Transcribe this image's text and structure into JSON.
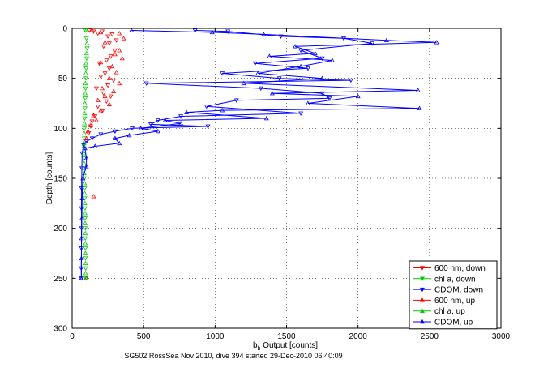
{
  "chart_data": {
    "type": "scatter",
    "title": "",
    "caption": "SG502 RossSea Nov 2010, dive 394 started 29-Dec-2010 06:40:09",
    "xlabel": "b",
    "xlabel_sub": "b",
    "xlabel_suffix": " Output [counts]",
    "ylabel": "Depth [counts]",
    "xlim": [
      0,
      3000
    ],
    "ylim": [
      0,
      300
    ],
    "y_reversed": true,
    "grid": "dotted",
    "legend_position": "lower-right",
    "xticks": [
      "0",
      "500",
      "1000",
      "1500",
      "2000",
      "2500",
      "3000"
    ],
    "yticks": [
      "0",
      "50",
      "100",
      "150",
      "200",
      "250",
      "300"
    ],
    "xtick_values": [
      0,
      500,
      1000,
      1500,
      2000,
      2500,
      3000
    ],
    "ytick_values": [
      0,
      50,
      100,
      150,
      200,
      250,
      300
    ],
    "colors": {
      "red": "#ff0000",
      "green": "#00cc00",
      "blue": "#0000ff"
    },
    "series": [
      {
        "name": "600 nm, down",
        "color": "#ff0000",
        "marker": "triangle-down",
        "line": false,
        "points": [
          [
            120,
            2
          ],
          [
            150,
            3
          ],
          [
            180,
            5
          ],
          [
            210,
            3
          ],
          [
            250,
            8
          ],
          [
            280,
            6
          ],
          [
            310,
            12
          ],
          [
            260,
            15
          ],
          [
            220,
            18
          ],
          [
            300,
            22
          ],
          [
            270,
            28
          ],
          [
            240,
            32
          ],
          [
            190,
            35
          ],
          [
            260,
            40
          ],
          [
            230,
            45
          ],
          [
            200,
            48
          ],
          [
            290,
            52
          ],
          [
            250,
            57
          ],
          [
            170,
            60
          ],
          [
            220,
            65
          ],
          [
            270,
            68
          ],
          [
            240,
            73
          ],
          [
            180,
            78
          ],
          [
            210,
            83
          ],
          [
            160,
            88
          ],
          [
            140,
            93
          ],
          [
            130,
            98
          ],
          [
            115,
            105
          ]
        ]
      },
      {
        "name": "chl a, down",
        "color": "#00cc00",
        "marker": "triangle-down",
        "line": false,
        "points": [
          [
            95,
            2
          ],
          [
            100,
            10
          ],
          [
            105,
            20
          ],
          [
            102,
            30
          ],
          [
            98,
            40
          ],
          [
            96,
            50
          ],
          [
            94,
            60
          ],
          [
            92,
            70
          ],
          [
            90,
            80
          ],
          [
            88,
            90
          ],
          [
            86,
            100
          ],
          [
            85,
            110
          ],
          [
            84,
            120
          ],
          [
            84,
            130
          ],
          [
            85,
            140
          ],
          [
            86,
            150
          ],
          [
            88,
            160
          ],
          [
            89,
            170
          ],
          [
            90,
            180
          ],
          [
            91,
            190
          ],
          [
            92,
            200
          ],
          [
            92,
            210
          ],
          [
            93,
            220
          ],
          [
            93,
            230
          ],
          [
            94,
            240
          ],
          [
            95,
            250
          ]
        ]
      },
      {
        "name": "CDOM, down",
        "color": "#0000ff",
        "marker": "triangle-down",
        "line": true,
        "points": [
          [
            860,
            2
          ],
          [
            1090,
            3
          ],
          [
            1460,
            8
          ],
          [
            1900,
            10
          ],
          [
            2100,
            15
          ],
          [
            1600,
            22
          ],
          [
            1750,
            30
          ],
          [
            1280,
            35
          ],
          [
            1650,
            40
          ],
          [
            1050,
            45
          ],
          [
            1450,
            50
          ],
          [
            1950,
            52
          ],
          [
            520,
            55
          ],
          [
            1320,
            60
          ],
          [
            1750,
            65
          ],
          [
            1800,
            70
          ],
          [
            1150,
            72
          ],
          [
            940,
            78
          ],
          [
            1600,
            85
          ],
          [
            760,
            88
          ],
          [
            600,
            92
          ],
          [
            550,
            96
          ],
          [
            950,
            98
          ],
          [
            420,
            100
          ],
          [
            300,
            103
          ],
          [
            200,
            106
          ],
          [
            140,
            110
          ],
          [
            100,
            113
          ],
          [
            80,
            117
          ],
          [
            70,
            125
          ],
          [
            68,
            140
          ],
          [
            66,
            160
          ],
          [
            65,
            180
          ],
          [
            66,
            200
          ],
          [
            65,
            220
          ],
          [
            64,
            240
          ],
          [
            65,
            250
          ]
        ]
      },
      {
        "name": "600 nm, up",
        "color": "#ff0000",
        "marker": "triangle-up",
        "line": false,
        "points": [
          [
            140,
            2
          ],
          [
            200,
            4
          ],
          [
            330,
            5
          ],
          [
            360,
            10
          ],
          [
            230,
            14
          ],
          [
            330,
            22
          ],
          [
            300,
            26
          ],
          [
            350,
            30
          ],
          [
            200,
            34
          ],
          [
            280,
            38
          ],
          [
            310,
            44
          ],
          [
            260,
            50
          ],
          [
            330,
            55
          ],
          [
            210,
            60
          ],
          [
            290,
            63
          ],
          [
            230,
            68
          ],
          [
            180,
            72
          ],
          [
            260,
            76
          ],
          [
            200,
            82
          ],
          [
            150,
            87
          ],
          [
            170,
            92
          ],
          [
            130,
            97
          ],
          [
            110,
            103
          ],
          [
            100,
            110
          ],
          [
            150,
            168
          ],
          [
            100,
            250
          ]
        ]
      },
      {
        "name": "chl a, up",
        "color": "#00cc00",
        "marker": "triangle-up",
        "line": false,
        "points": [
          [
            98,
            2
          ],
          [
            104,
            15
          ],
          [
            101,
            25
          ],
          [
            97,
            35
          ],
          [
            95,
            45
          ],
          [
            93,
            55
          ],
          [
            91,
            65
          ],
          [
            89,
            75
          ],
          [
            87,
            85
          ],
          [
            86,
            95
          ],
          [
            84,
            105
          ],
          [
            83,
            115
          ],
          [
            83,
            125
          ],
          [
            84,
            135
          ],
          [
            85,
            145
          ],
          [
            87,
            155
          ],
          [
            88,
            165
          ],
          [
            89,
            175
          ],
          [
            90,
            185
          ],
          [
            91,
            195
          ],
          [
            92,
            205
          ],
          [
            92,
            215
          ],
          [
            93,
            225
          ],
          [
            94,
            235
          ],
          [
            94,
            245
          ],
          [
            96,
            250
          ]
        ]
      },
      {
        "name": "CDOM, up",
        "color": "#0000ff",
        "marker": "triangle-up",
        "line": true,
        "points": [
          [
            415,
            2
          ],
          [
            980,
            4
          ],
          [
            1340,
            6
          ],
          [
            2200,
            12
          ],
          [
            2550,
            14
          ],
          [
            1560,
            18
          ],
          [
            1700,
            25
          ],
          [
            1380,
            28
          ],
          [
            1820,
            32
          ],
          [
            1600,
            38
          ],
          [
            1300,
            45
          ],
          [
            1750,
            50
          ],
          [
            1200,
            55
          ],
          [
            2420,
            62
          ],
          [
            1400,
            65
          ],
          [
            2000,
            68
          ],
          [
            1650,
            75
          ],
          [
            2430,
            80
          ],
          [
            1050,
            82
          ],
          [
            800,
            84
          ],
          [
            1360,
            90
          ],
          [
            650,
            92
          ],
          [
            760,
            95
          ],
          [
            480,
            100
          ],
          [
            600,
            103
          ],
          [
            400,
            107
          ],
          [
            300,
            110
          ],
          [
            330,
            115
          ],
          [
            160,
            118
          ],
          [
            90,
            120
          ],
          [
            100,
            130
          ],
          [
            100,
            138
          ],
          [
            75,
            150
          ],
          [
            70,
            170
          ],
          [
            68,
            190
          ],
          [
            66,
            210
          ],
          [
            65,
            230
          ],
          [
            64,
            250
          ]
        ]
      }
    ]
  }
}
